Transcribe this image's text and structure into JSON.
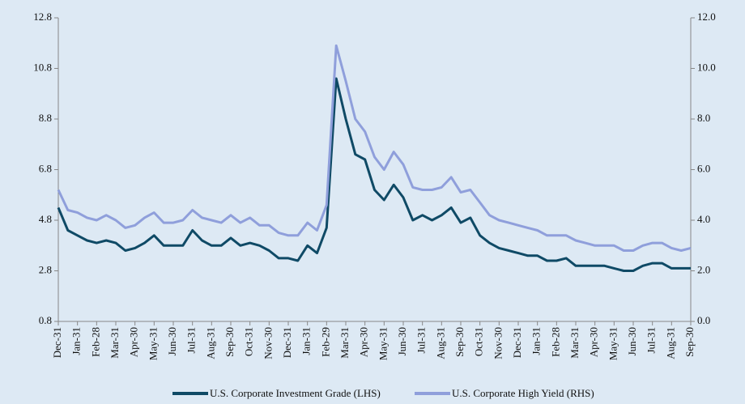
{
  "chart_data": {
    "type": "line",
    "categories": [
      "Dec-31",
      null,
      "Jan-31",
      null,
      "Feb-28",
      null,
      "Mar-31",
      null,
      "Apr-30",
      null,
      "May-31",
      null,
      "Jun-30",
      null,
      "Jul-31",
      null,
      "Aug-31",
      null,
      "Sep-30",
      null,
      "Oct-31",
      null,
      "Nov-30",
      null,
      "Dec-31",
      null,
      "Jan-31",
      null,
      "Feb-29",
      null,
      "Mar-31",
      null,
      "Apr-30",
      null,
      "May-31",
      null,
      "Jun-30",
      null,
      "Jul-31",
      null,
      "Aug-31",
      null,
      "Sep-30",
      null,
      "Oct-31",
      null,
      "Nov-30",
      null,
      "Dec-31",
      null,
      "Jan-31",
      null,
      "Feb-28",
      null,
      "Mar-31",
      null,
      "Apr-30",
      null,
      "May-31",
      null,
      "Jun-30",
      null,
      "Jul-31",
      null,
      "Aug-31",
      null,
      "Sep-30"
    ],
    "series": [
      {
        "name": "U.S. Corporate Investment Grade (LHS)",
        "color": "#0f4a66",
        "axis": "y",
        "values": [
          5.3,
          4.4,
          4.2,
          4.0,
          3.9,
          4.0,
          3.9,
          3.6,
          3.7,
          3.9,
          4.2,
          3.8,
          3.8,
          3.8,
          4.4,
          4.0,
          3.8,
          3.8,
          4.1,
          3.8,
          3.9,
          3.8,
          3.6,
          3.3,
          3.3,
          3.2,
          3.8,
          3.5,
          4.5,
          10.4,
          8.8,
          7.4,
          7.2,
          6.0,
          5.6,
          6.2,
          5.7,
          4.8,
          5.0,
          4.8,
          5.0,
          5.3,
          4.7,
          4.9,
          4.2,
          3.9,
          3.7,
          3.6,
          3.5,
          3.4,
          3.4,
          3.2,
          3.2,
          3.3,
          3.0,
          3.0,
          3.0,
          3.0,
          2.9,
          2.8,
          2.8,
          3.0,
          3.1,
          3.1,
          2.9,
          2.9,
          2.9
        ]
      },
      {
        "name": "U.S. Corporate High Yield (RHS)",
        "color": "#8f9fdb",
        "axis": "y2",
        "values": [
          5.2,
          4.4,
          4.3,
          4.1,
          4.0,
          4.2,
          4.0,
          3.7,
          3.8,
          4.1,
          4.3,
          3.9,
          3.9,
          4.0,
          4.4,
          4.1,
          4.0,
          3.9,
          4.2,
          3.9,
          4.1,
          3.8,
          3.8,
          3.5,
          3.4,
          3.4,
          3.9,
          3.6,
          4.6,
          10.9,
          9.5,
          8.0,
          7.5,
          6.5,
          6.0,
          6.7,
          6.2,
          5.3,
          5.2,
          5.2,
          5.3,
          5.7,
          5.1,
          5.2,
          4.7,
          4.2,
          4.0,
          3.9,
          3.8,
          3.7,
          3.6,
          3.4,
          3.4,
          3.4,
          3.2,
          3.1,
          3.0,
          3.0,
          3.0,
          2.8,
          2.8,
          3.0,
          3.1,
          3.1,
          2.9,
          2.8,
          2.9
        ]
      }
    ],
    "ylim": [
      0.8,
      12.8
    ],
    "yticks": [
      0.8,
      2.8,
      4.8,
      6.8,
      8.8,
      10.8,
      12.8
    ],
    "y2lim": [
      0,
      12
    ],
    "y2ticks": [
      {
        "value": 0,
        "label": "0.0"
      },
      {
        "value": 2,
        "label": "2.0"
      },
      {
        "value": 4,
        "label": "4.0"
      },
      {
        "value": 6,
        "label": "6.0"
      },
      {
        "value": 8,
        "label": "8.0"
      },
      {
        "value": 10,
        "label": "10.0"
      },
      {
        "value": 12,
        "label": "12.0"
      }
    ],
    "grid": false,
    "legend": "bottom"
  }
}
